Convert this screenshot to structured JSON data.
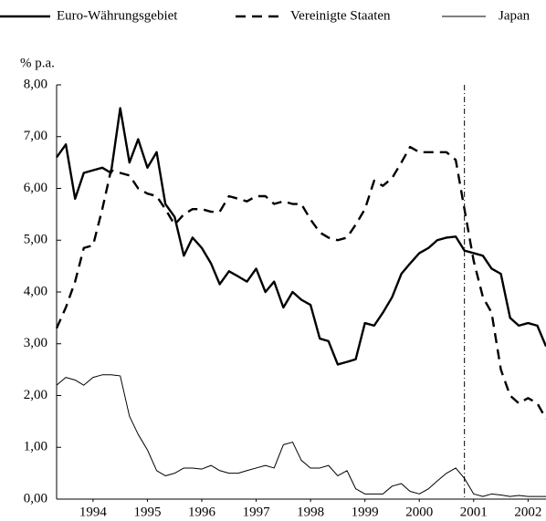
{
  "chart_data": {
    "type": "line",
    "y_label": "% p.a.",
    "x": [
      1993.83,
      1994.0,
      1994.17,
      1994.33,
      1994.5,
      1994.67,
      1994.83,
      1995.0,
      1995.17,
      1995.33,
      1995.5,
      1995.67,
      1995.83,
      1996.0,
      1996.17,
      1996.33,
      1996.5,
      1996.67,
      1996.83,
      1997.0,
      1997.17,
      1997.33,
      1997.5,
      1997.67,
      1997.83,
      1998.0,
      1998.17,
      1998.33,
      1998.5,
      1998.67,
      1998.83,
      1999.0,
      1999.17,
      1999.33,
      1999.5,
      1999.67,
      1999.83,
      2000.0,
      2000.17,
      2000.33,
      2000.5,
      2000.67,
      2000.83,
      2001.0,
      2001.17,
      2001.33,
      2001.5,
      2001.67,
      2001.83,
      2002.0,
      2002.17,
      2002.33,
      2002.5,
      2002.67,
      2002.83
    ],
    "series": [
      {
        "name": "Euro-Währungsgebiet",
        "color": "#000000",
        "line_style": "solid",
        "line_width": 2.4,
        "values": [
          6.6,
          6.85,
          5.8,
          6.3,
          6.35,
          6.4,
          6.3,
          7.55,
          6.5,
          6.95,
          6.4,
          6.7,
          5.7,
          5.45,
          4.7,
          5.05,
          4.85,
          4.55,
          4.15,
          4.4,
          4.3,
          4.2,
          4.45,
          4.0,
          4.2,
          3.7,
          4.0,
          3.85,
          3.75,
          3.1,
          3.05,
          2.6,
          2.65,
          2.7,
          3.4,
          3.35,
          3.6,
          3.9,
          4.35,
          4.55,
          4.75,
          4.85,
          5.0,
          5.05,
          5.07,
          4.8,
          4.75,
          4.7,
          4.45,
          4.35,
          3.5,
          3.35,
          3.4,
          3.35,
          2.95
        ]
      },
      {
        "name": "Vereinigte Staaten",
        "color": "#000000",
        "line_style": "dashed",
        "line_width": 2.4,
        "values": [
          3.3,
          3.7,
          4.2,
          4.85,
          4.9,
          5.6,
          6.35,
          6.3,
          6.25,
          6.0,
          5.9,
          5.85,
          5.6,
          5.3,
          5.5,
          5.6,
          5.6,
          5.55,
          5.55,
          5.85,
          5.8,
          5.75,
          5.85,
          5.85,
          5.7,
          5.75,
          5.7,
          5.7,
          5.4,
          5.15,
          5.05,
          5.0,
          5.05,
          5.3,
          5.6,
          6.15,
          6.05,
          6.2,
          6.5,
          6.8,
          6.7,
          6.7,
          6.7,
          6.7,
          6.55,
          5.6,
          4.6,
          3.9,
          3.6,
          2.5,
          2.0,
          1.85,
          1.95,
          1.85,
          1.55
        ]
      },
      {
        "name": "Japan",
        "color": "#000000",
        "line_style": "solid",
        "line_width": 1,
        "values": [
          2.2,
          2.35,
          2.3,
          2.2,
          2.35,
          2.4,
          2.4,
          2.38,
          1.6,
          1.25,
          0.95,
          0.55,
          0.45,
          0.5,
          0.6,
          0.6,
          0.58,
          0.65,
          0.55,
          0.5,
          0.5,
          0.55,
          0.6,
          0.65,
          0.6,
          1.05,
          1.1,
          0.75,
          0.6,
          0.6,
          0.65,
          0.45,
          0.55,
          0.2,
          0.1,
          0.1,
          0.1,
          0.25,
          0.3,
          0.15,
          0.1,
          0.2,
          0.35,
          0.5,
          0.6,
          0.4,
          0.1,
          0.05,
          0.1,
          0.08,
          0.05,
          0.07,
          0.05,
          0.05,
          0.05
        ]
      }
    ],
    "xlim": [
      1993.83,
      2002.83
    ],
    "xticks": [
      {
        "value": 1994.5,
        "label": "1994"
      },
      {
        "value": 1995.5,
        "label": "1995"
      },
      {
        "value": 1996.5,
        "label": "1996"
      },
      {
        "value": 1997.5,
        "label": "1997"
      },
      {
        "value": 1998.5,
        "label": "1998"
      },
      {
        "value": 1999.5,
        "label": "1999"
      },
      {
        "value": 2000.5,
        "label": "2000"
      },
      {
        "value": 2001.5,
        "label": "2001"
      },
      {
        "value": 2002.5,
        "label": "2002"
      }
    ],
    "ylim": [
      0,
      8
    ],
    "yticks": [
      {
        "value": 0,
        "label": "0,00"
      },
      {
        "value": 1,
        "label": "1,00"
      },
      {
        "value": 2,
        "label": "2,00"
      },
      {
        "value": 3,
        "label": "3,00"
      },
      {
        "value": 4,
        "label": "4,00"
      },
      {
        "value": 5,
        "label": "5,00"
      },
      {
        "value": 6,
        "label": "6,00"
      },
      {
        "value": 7,
        "label": "7,00"
      },
      {
        "value": 8,
        "label": "8,00"
      }
    ],
    "reference_line_x": 2001.33,
    "grid": false,
    "legend": "top"
  }
}
